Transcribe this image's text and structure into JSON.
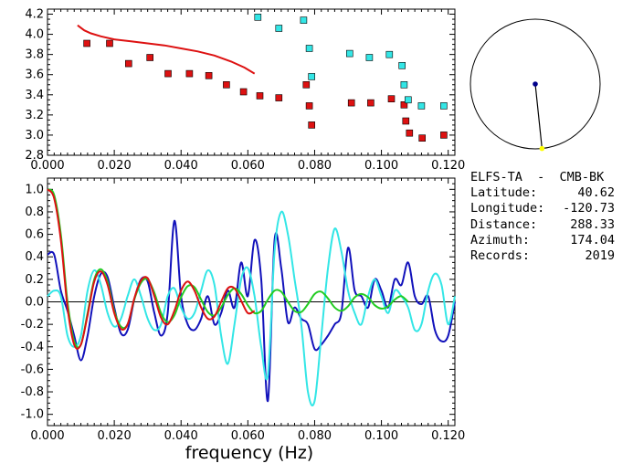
{
  "info": {
    "title": "ELFS-TA  -  CMB-BK",
    "rows": [
      {
        "label": "Latitude:",
        "value": "40.62"
      },
      {
        "label": "Longitude:",
        "value": "-120.73"
      },
      {
        "label": "Distance:",
        "value": "288.33"
      },
      {
        "label": "Azimuth:",
        "value": "174.04"
      },
      {
        "label": "Records:",
        "value": "2019"
      }
    ]
  },
  "azimuth_plot": {
    "azimuth_deg": 174.04,
    "circle_color": "#000000",
    "center_marker_color": "#00008b",
    "edge_marker_color": "#ffff00"
  },
  "colors": {
    "red": "#dd1111",
    "cyan": "#33e6e6",
    "blue": "#1111bb",
    "green": "#22cc22",
    "axis": "#000000"
  },
  "chart_data": [
    {
      "type": "scatter",
      "title": "",
      "xlabel": "",
      "ylabel": "",
      "xlim": [
        0.0,
        0.122
      ],
      "ylim": [
        2.8,
        4.25
      ],
      "xticks": [
        "0.000",
        "0.020",
        "0.040",
        "0.060",
        "0.080",
        "0.100",
        "0.120"
      ],
      "yticks": [
        "2.8",
        "3.0",
        "3.2",
        "3.4",
        "3.6",
        "3.8",
        "4.0",
        "4.2"
      ],
      "series": [
        {
          "kind": "points",
          "color_key": "red",
          "x": [
            0.0118,
            0.0186,
            0.0243,
            0.0307,
            0.0361,
            0.0425,
            0.0483,
            0.0536,
            0.0587,
            0.0636,
            0.0693,
            0.0775,
            0.0784,
            0.0791,
            0.091,
            0.0968,
            0.103,
            0.1068,
            0.1073,
            0.1084,
            0.1122,
            0.1187
          ],
          "y": [
            3.91,
            3.91,
            3.71,
            3.77,
            3.61,
            3.61,
            3.59,
            3.5,
            3.43,
            3.39,
            3.37,
            3.5,
            3.29,
            3.1,
            3.32,
            3.32,
            3.36,
            3.3,
            3.14,
            3.02,
            2.97,
            3.0
          ]
        },
        {
          "kind": "points",
          "color_key": "cyan",
          "x": [
            0.063,
            0.0693,
            0.0767,
            0.0784,
            0.0791,
            0.0905,
            0.0964,
            0.1024,
            0.1062,
            0.1068,
            0.108,
            0.112,
            0.1187
          ],
          "y": [
            4.17,
            4.06,
            4.14,
            3.86,
            3.58,
            3.81,
            3.77,
            3.8,
            3.69,
            3.5,
            3.35,
            3.29,
            3.29
          ]
        },
        {
          "kind": "curve",
          "color_key": "red",
          "x": [
            0.009,
            0.011,
            0.013,
            0.016,
            0.02,
            0.025,
            0.03,
            0.035,
            0.04,
            0.045,
            0.05,
            0.055,
            0.059,
            0.062
          ],
          "y": [
            4.09,
            4.04,
            4.01,
            3.98,
            3.95,
            3.93,
            3.91,
            3.89,
            3.86,
            3.83,
            3.79,
            3.73,
            3.67,
            3.61
          ]
        }
      ]
    },
    {
      "type": "line",
      "title": "",
      "xlabel": "frequency (Hz)",
      "ylabel": "",
      "xlim": [
        0.0,
        0.122
      ],
      "ylim": [
        -1.1,
        1.1
      ],
      "xticks": [
        "0.000",
        "0.020",
        "0.040",
        "0.060",
        "0.080",
        "0.100",
        "0.120"
      ],
      "yticks": [
        "-1.0",
        "-0.8",
        "-0.6",
        "-0.4",
        "-0.2",
        "0.0",
        "0.2",
        "0.4",
        "0.6",
        "0.8",
        "1.0"
      ],
      "series": [
        {
          "color_key": "blue",
          "x": [
            0.0,
            0.002,
            0.004,
            0.006,
            0.008,
            0.01,
            0.012,
            0.014,
            0.016,
            0.018,
            0.02,
            0.022,
            0.024,
            0.026,
            0.028,
            0.03,
            0.032,
            0.034,
            0.036,
            0.038,
            0.04,
            0.042,
            0.044,
            0.046,
            0.048,
            0.05,
            0.052,
            0.054,
            0.056,
            0.058,
            0.06,
            0.062,
            0.064,
            0.066,
            0.068,
            0.07,
            0.072,
            0.074,
            0.076,
            0.078,
            0.08,
            0.082,
            0.084,
            0.086,
            0.088,
            0.09,
            0.092,
            0.094,
            0.096,
            0.098,
            0.1,
            0.102,
            0.104,
            0.106,
            0.108,
            0.11,
            0.112,
            0.114,
            0.116,
            0.118,
            0.12,
            0.122
          ],
          "y": [
            0.42,
            0.42,
            0.1,
            -0.08,
            -0.3,
            -0.52,
            -0.3,
            0.05,
            0.25,
            0.22,
            -0.05,
            -0.28,
            -0.25,
            0.02,
            0.2,
            0.18,
            -0.1,
            -0.3,
            -0.1,
            0.72,
            0.05,
            -0.2,
            -0.25,
            -0.15,
            0.05,
            -0.2,
            -0.1,
            0.1,
            -0.05,
            0.35,
            0.05,
            0.55,
            0.2,
            -0.88,
            0.55,
            0.3,
            -0.18,
            -0.05,
            -0.15,
            -0.2,
            -0.42,
            -0.38,
            -0.3,
            -0.2,
            -0.1,
            0.48,
            0.1,
            0.05,
            -0.05,
            0.2,
            0.1,
            -0.05,
            0.2,
            0.15,
            0.35,
            0.05,
            -0.02,
            0.05,
            -0.25,
            -0.35,
            -0.3,
            0.0
          ]
        },
        {
          "color_key": "cyan",
          "x": [
            0.0,
            0.002,
            0.004,
            0.006,
            0.008,
            0.01,
            0.012,
            0.014,
            0.016,
            0.018,
            0.02,
            0.022,
            0.024,
            0.026,
            0.028,
            0.03,
            0.032,
            0.034,
            0.036,
            0.038,
            0.04,
            0.042,
            0.044,
            0.046,
            0.048,
            0.05,
            0.052,
            0.054,
            0.056,
            0.058,
            0.06,
            0.062,
            0.064,
            0.066,
            0.068,
            0.07,
            0.072,
            0.074,
            0.076,
            0.078,
            0.08,
            0.082,
            0.084,
            0.086,
            0.088,
            0.09,
            0.092,
            0.094,
            0.096,
            0.098,
            0.1,
            0.102,
            0.104,
            0.106,
            0.108,
            0.11,
            0.112,
            0.114,
            0.116,
            0.118,
            0.12,
            0.122
          ],
          "y": [
            0.05,
            0.1,
            0.05,
            -0.3,
            -0.4,
            -0.3,
            0.1,
            0.28,
            0.15,
            -0.1,
            -0.22,
            -0.15,
            0.05,
            0.2,
            0.05,
            -0.15,
            -0.25,
            -0.2,
            0.05,
            0.12,
            -0.05,
            -0.15,
            -0.1,
            0.1,
            0.28,
            0.15,
            -0.3,
            -0.55,
            -0.2,
            0.2,
            0.3,
            0.05,
            -0.4,
            -0.65,
            0.45,
            0.8,
            0.6,
            0.2,
            -0.2,
            -0.8,
            -0.88,
            -0.3,
            0.3,
            0.65,
            0.45,
            0.1,
            -0.1,
            -0.2,
            0.05,
            0.2,
            0.05,
            -0.1,
            0.1,
            0.05,
            -0.05,
            -0.25,
            -0.2,
            0.1,
            0.25,
            0.15,
            -0.2,
            0.05
          ]
        },
        {
          "color_key": "green",
          "x": [
            0.0,
            0.002,
            0.004,
            0.006,
            0.008,
            0.01,
            0.012,
            0.014,
            0.016,
            0.018,
            0.02,
            0.022,
            0.024,
            0.026,
            0.028,
            0.03,
            0.032,
            0.034,
            0.036,
            0.038,
            0.04,
            0.042,
            0.044,
            0.046,
            0.048,
            0.05,
            0.052,
            0.054,
            0.056,
            0.058,
            0.06,
            0.062,
            0.064,
            0.066,
            0.068,
            0.07,
            0.072,
            0.074,
            0.076,
            0.078,
            0.08,
            0.082,
            0.084,
            0.086,
            0.088,
            0.09,
            0.092,
            0.094,
            0.096,
            0.098,
            0.1,
            0.102,
            0.104,
            0.106,
            0.108
          ],
          "y": [
            1.0,
            0.95,
            0.6,
            0.0,
            -0.35,
            -0.38,
            -0.1,
            0.2,
            0.29,
            0.18,
            -0.08,
            -0.22,
            -0.2,
            0.02,
            0.17,
            0.2,
            0.08,
            -0.1,
            -0.18,
            -0.12,
            0.04,
            0.14,
            0.13,
            0.02,
            -0.09,
            -0.12,
            -0.05,
            0.06,
            0.12,
            0.07,
            -0.03,
            -0.1,
            -0.08,
            0.02,
            0.1,
            0.09,
            0.0,
            -0.08,
            -0.09,
            -0.02,
            0.07,
            0.09,
            0.03,
            -0.05,
            -0.08,
            -0.04,
            0.04,
            0.07,
            0.04,
            -0.03,
            -0.06,
            -0.04,
            0.02,
            0.05,
            0.0
          ]
        },
        {
          "color_key": "red",
          "x": [
            0.0,
            0.002,
            0.004,
            0.006,
            0.008,
            0.01,
            0.012,
            0.014,
            0.016,
            0.018,
            0.02,
            0.022,
            0.024,
            0.026,
            0.028,
            0.03,
            0.032,
            0.034,
            0.036,
            0.038,
            0.04,
            0.042,
            0.044,
            0.046,
            0.048,
            0.05,
            0.052,
            0.054,
            0.056,
            0.058,
            0.06,
            0.062
          ],
          "y": [
            1.0,
            0.92,
            0.55,
            -0.05,
            -0.38,
            -0.38,
            -0.12,
            0.18,
            0.27,
            0.15,
            -0.1,
            -0.24,
            -0.2,
            0.03,
            0.19,
            0.21,
            0.05,
            -0.14,
            -0.2,
            -0.08,
            0.1,
            0.18,
            0.1,
            -0.05,
            -0.15,
            -0.13,
            0.0,
            0.12,
            0.12,
            0.01,
            -0.1,
            -0.08
          ]
        }
      ]
    }
  ]
}
